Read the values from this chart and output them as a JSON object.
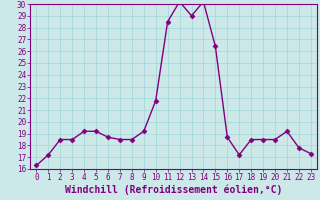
{
  "x": [
    0,
    1,
    2,
    3,
    4,
    5,
    6,
    7,
    8,
    9,
    10,
    11,
    12,
    13,
    14,
    15,
    16,
    17,
    18,
    19,
    20,
    21,
    22,
    23
  ],
  "y": [
    16.3,
    17.2,
    18.5,
    18.5,
    19.2,
    19.2,
    18.7,
    18.5,
    18.5,
    19.2,
    21.8,
    28.5,
    30.2,
    29.0,
    30.2,
    26.4,
    18.7,
    17.2,
    18.5,
    18.5,
    18.5,
    19.2,
    17.8,
    17.3
  ],
  "line_color": "#800080",
  "marker": "D",
  "markersize": 2.5,
  "linewidth": 1.0,
  "xlabel": "Windchill (Refroidissement éolien,°C)",
  "xlim": [
    -0.5,
    23.5
  ],
  "ylim": [
    16,
    30
  ],
  "yticks": [
    16,
    17,
    18,
    19,
    20,
    21,
    22,
    23,
    24,
    25,
    26,
    27,
    28,
    29,
    30
  ],
  "xticks": [
    0,
    1,
    2,
    3,
    4,
    5,
    6,
    7,
    8,
    9,
    10,
    11,
    12,
    13,
    14,
    15,
    16,
    17,
    18,
    19,
    20,
    21,
    22,
    23
  ],
  "grid_color": "#a0d8d8",
  "bg_color": "#cce8e8",
  "tick_fontsize": 5.5,
  "xlabel_fontsize": 7.0
}
